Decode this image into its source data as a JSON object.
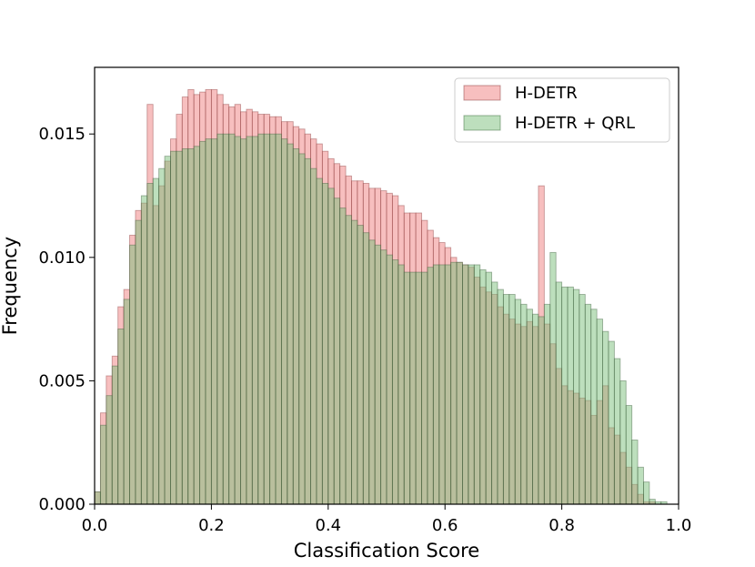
{
  "chart_data": {
    "type": "histogram",
    "title": "",
    "xlabel": "Classification Score",
    "ylabel": "Frequency",
    "xlim": [
      0.0,
      1.0
    ],
    "ylim": [
      0.0,
      0.0177
    ],
    "x_ticks": [
      "0.0",
      "0.2",
      "0.4",
      "0.6",
      "0.8",
      "1.0"
    ],
    "y_ticks": [
      "0.000",
      "0.005",
      "0.010",
      "0.015"
    ],
    "x_tick_values": [
      0.0,
      0.2,
      0.4,
      0.6,
      0.8,
      1.0
    ],
    "y_tick_values": [
      0.0,
      0.005,
      0.01,
      0.015
    ],
    "bin_start": 0.0,
    "bin_width": 0.01,
    "legend": {
      "position": "top-right"
    },
    "series": [
      {
        "name": "H-DETR",
        "color": "#f08080",
        "values": [
          0.0005,
          0.0037,
          0.0052,
          0.006,
          0.008,
          0.0087,
          0.0109,
          0.0119,
          0.0122,
          0.0162,
          0.0121,
          0.0129,
          0.0139,
          0.0148,
          0.0158,
          0.0165,
          0.0168,
          0.0166,
          0.0167,
          0.0168,
          0.0168,
          0.0166,
          0.0162,
          0.0161,
          0.0162,
          0.0159,
          0.016,
          0.0159,
          0.0158,
          0.0158,
          0.0157,
          0.0157,
          0.0155,
          0.0155,
          0.0153,
          0.0152,
          0.015,
          0.0148,
          0.0146,
          0.0143,
          0.014,
          0.0138,
          0.0137,
          0.0133,
          0.0131,
          0.0131,
          0.013,
          0.0128,
          0.0128,
          0.0127,
          0.0126,
          0.0125,
          0.0121,
          0.0118,
          0.0118,
          0.0118,
          0.0115,
          0.0111,
          0.0108,
          0.0106,
          0.0104,
          0.01,
          0.0098,
          0.0097,
          0.0096,
          0.0092,
          0.0088,
          0.0086,
          0.0085,
          0.008,
          0.0077,
          0.0075,
          0.0073,
          0.0072,
          0.0074,
          0.0072,
          0.0129,
          0.0073,
          0.0065,
          0.0055,
          0.0048,
          0.0046,
          0.0045,
          0.0043,
          0.0042,
          0.0036,
          0.0042,
          0.0048,
          0.0031,
          0.0028,
          0.0021,
          0.0015,
          0.0008,
          0.0004,
          0.0001,
          0.0001
        ]
      },
      {
        "name": "H-DETR + QRL",
        "color": "#7cc07c",
        "values": [
          0.0005,
          0.0032,
          0.0044,
          0.0056,
          0.0071,
          0.0083,
          0.0105,
          0.0115,
          0.0125,
          0.013,
          0.0132,
          0.0136,
          0.0141,
          0.0143,
          0.0143,
          0.0144,
          0.0144,
          0.0145,
          0.0147,
          0.0148,
          0.0148,
          0.015,
          0.015,
          0.015,
          0.0149,
          0.0148,
          0.0149,
          0.0149,
          0.015,
          0.015,
          0.015,
          0.015,
          0.0148,
          0.0146,
          0.0144,
          0.0142,
          0.014,
          0.0136,
          0.0132,
          0.013,
          0.0128,
          0.0124,
          0.012,
          0.0117,
          0.0115,
          0.0113,
          0.011,
          0.0107,
          0.0105,
          0.0103,
          0.0101,
          0.0099,
          0.0097,
          0.0094,
          0.0094,
          0.0094,
          0.0094,
          0.0096,
          0.0097,
          0.0097,
          0.0097,
          0.0098,
          0.0098,
          0.0097,
          0.0097,
          0.0097,
          0.0095,
          0.0094,
          0.009,
          0.0087,
          0.0085,
          0.0085,
          0.0083,
          0.0081,
          0.0079,
          0.0077,
          0.0076,
          0.0081,
          0.0102,
          0.009,
          0.0088,
          0.0088,
          0.0087,
          0.0085,
          0.0081,
          0.0079,
          0.0075,
          0.007,
          0.0066,
          0.0059,
          0.005,
          0.004,
          0.0026,
          0.0015,
          0.0009,
          0.0002,
          0.0001,
          0.0001
        ]
      }
    ]
  }
}
